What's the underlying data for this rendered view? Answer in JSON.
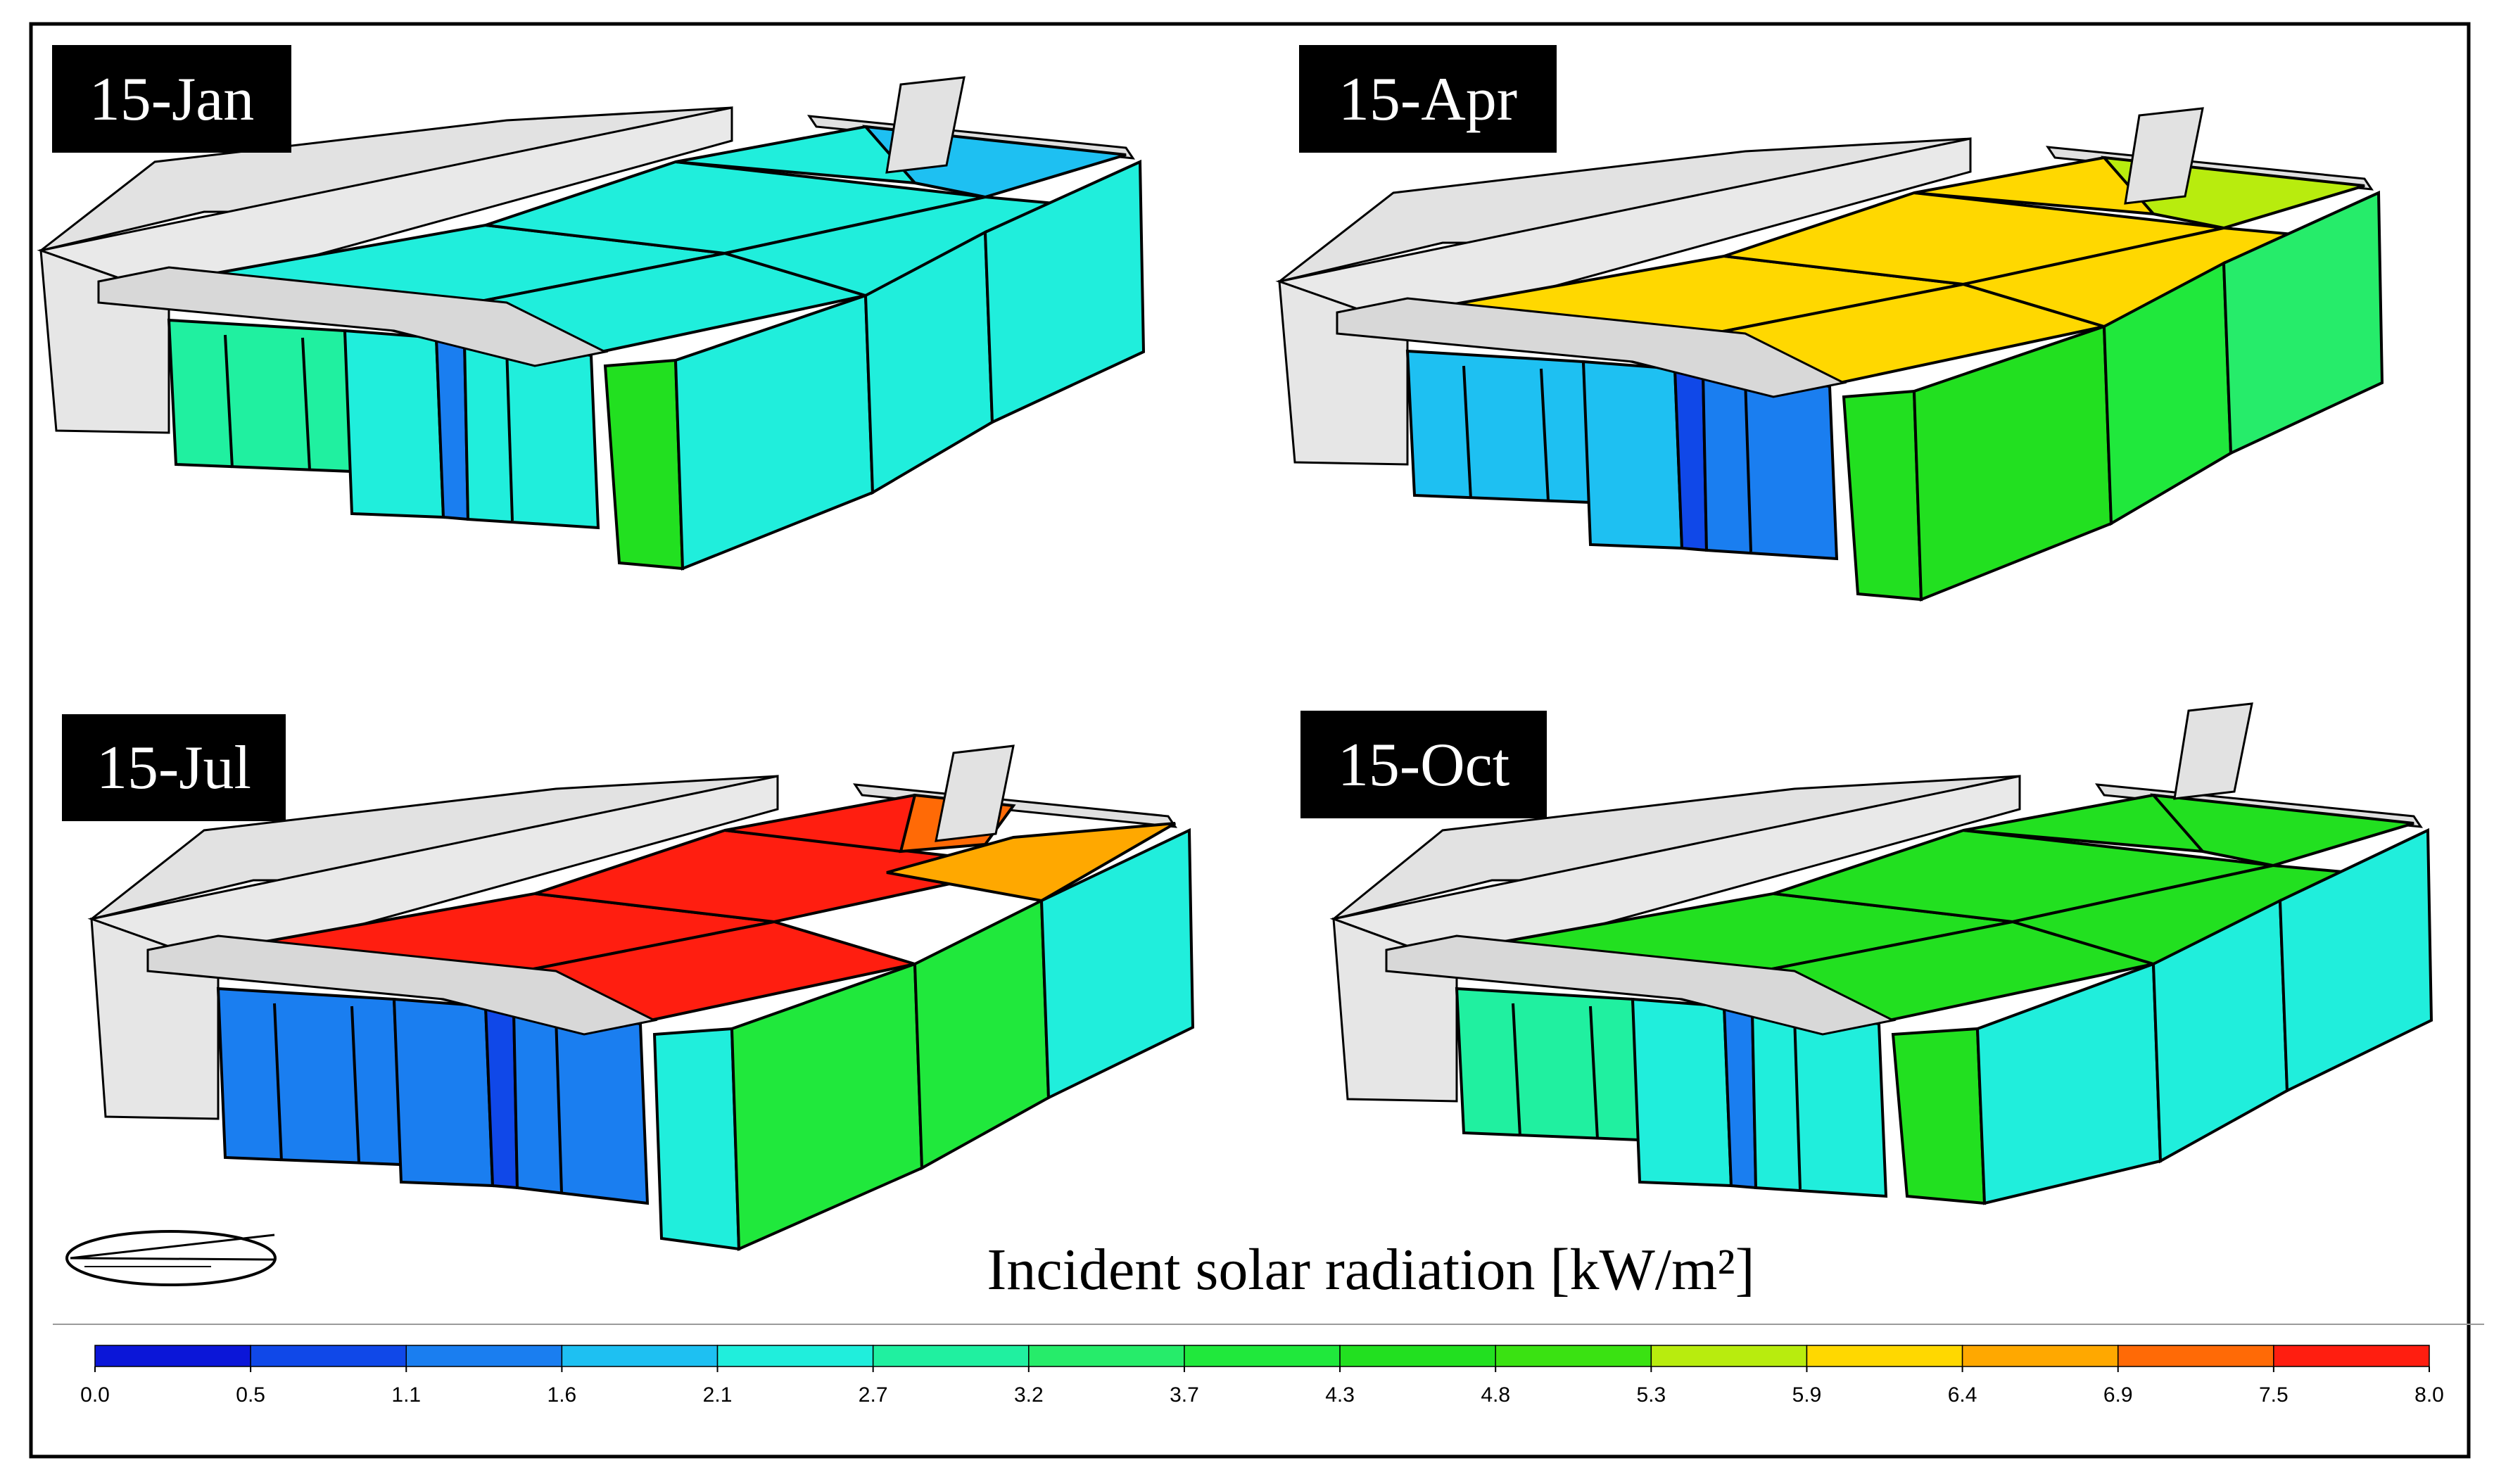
{
  "figure": {
    "panels": [
      {
        "label": "15-Jan",
        "month": "January",
        "roof_values_kw_m2": [
          2.4,
          2.4,
          2.4,
          2.4,
          2.4,
          1.8
        ],
        "front_values_kw_m2": [
          3.0,
          2.6,
          1.4,
          2.6
        ],
        "side_value_kw_m2": 4.4,
        "right_values_kw_m2": [
          2.5,
          2.5,
          2.5
        ]
      },
      {
        "label": "15-Apr",
        "month": "April",
        "roof_values_kw_m2": [
          6.1,
          6.1,
          6.1,
          6.1,
          6.1,
          5.6
        ],
        "front_values_kw_m2": [
          1.9,
          1.9,
          1.0,
          1.3
        ],
        "side_value_kw_m2": 4.4,
        "right_values_kw_m2": [
          4.3,
          3.8,
          3.6
        ]
      },
      {
        "label": "15-Jul",
        "month": "July",
        "roof_values_kw_m2": [
          7.9,
          7.9,
          7.9,
          7.9,
          7.3,
          6.6
        ],
        "front_values_kw_m2": [
          1.2,
          1.2,
          0.6,
          1.2
        ],
        "side_value_kw_m2": 2.4,
        "right_values_kw_m2": [
          3.9,
          4.0,
          2.5
        ]
      },
      {
        "label": "15-Oct",
        "month": "October",
        "roof_values_kw_m2": [
          4.6,
          4.6,
          4.6,
          4.6,
          4.6,
          4.6
        ],
        "front_values_kw_m2": [
          3.0,
          2.6,
          1.4,
          2.6
        ],
        "side_value_kw_m2": 4.4,
        "right_values_kw_m2": [
          2.5,
          2.5,
          2.5
        ]
      }
    ],
    "legend": {
      "title": "Incident solar radiation [kW/m²]",
      "ticks": [
        "0.0",
        "0.5",
        "1.1",
        "1.6",
        "2.1",
        "2.7",
        "3.2",
        "3.7",
        "4.3",
        "4.8",
        "5.3",
        "5.9",
        "6.4",
        "6.9",
        "7.5",
        "8.0"
      ],
      "min": 0.0,
      "max": 8.0,
      "colors": [
        "#0b16d8",
        "#1048e8",
        "#1a7ef0",
        "#1ec0f2",
        "#20eedc",
        "#20f0a0",
        "#26ec6a",
        "#20e83c",
        "#22e020",
        "#3ae212",
        "#b8ec0e",
        "#ffd800",
        "#ffa800",
        "#ff6a06",
        "#ff1e10"
      ]
    },
    "compass": {
      "icon": "north-arrow-icon"
    },
    "colors": {
      "background": "#ffffff",
      "frame": "#000000",
      "shell": "#e8e8e8",
      "label_bg": "#000000",
      "label_text": "#ffffff"
    }
  }
}
